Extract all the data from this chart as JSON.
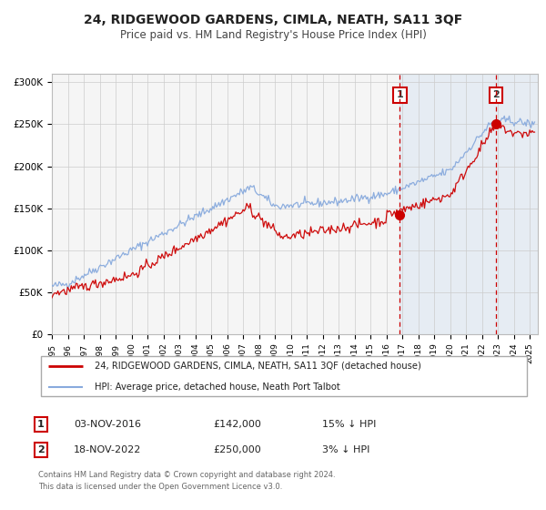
{
  "title": "24, RIDGEWOOD GARDENS, CIMLA, NEATH, SA11 3QF",
  "subtitle": "Price paid vs. HM Land Registry's House Price Index (HPI)",
  "ylim": [
    0,
    310000
  ],
  "xlim_start": 1995.0,
  "xlim_end": 2025.5,
  "yticks": [
    0,
    50000,
    100000,
    150000,
    200000,
    250000,
    300000
  ],
  "ytick_labels": [
    "£0",
    "£50K",
    "£100K",
    "£150K",
    "£200K",
    "£250K",
    "£300K"
  ],
  "xtick_years": [
    1995,
    1996,
    1997,
    1998,
    1999,
    2000,
    2001,
    2002,
    2003,
    2004,
    2005,
    2006,
    2007,
    2008,
    2009,
    2010,
    2011,
    2012,
    2013,
    2014,
    2015,
    2016,
    2017,
    2018,
    2019,
    2020,
    2021,
    2022,
    2023,
    2024,
    2025
  ],
  "sale1_x": 2016.84,
  "sale1_y": 142000,
  "sale1_label": "1",
  "sale1_date": "03-NOV-2016",
  "sale1_price": "£142,000",
  "sale1_hpi": "15% ↓ HPI",
  "sale2_x": 2022.88,
  "sale2_y": 250000,
  "sale2_label": "2",
  "sale2_date": "18-NOV-2022",
  "sale2_price": "£250,000",
  "sale2_hpi": "3% ↓ HPI",
  "line1_color": "#cc0000",
  "line2_color": "#88aadd",
  "sale_dot_color": "#cc0000",
  "sale_vline_color": "#cc0000",
  "bg_shade_color": "#ccddf0",
  "legend1_label": "24, RIDGEWOOD GARDENS, CIMLA, NEATH, SA11 3QF (detached house)",
  "legend2_label": "HPI: Average price, detached house, Neath Port Talbot",
  "footer1": "Contains HM Land Registry data © Crown copyright and database right 2024.",
  "footer2": "This data is licensed under the Open Government Licence v3.0.",
  "title_fontsize": 10,
  "subtitle_fontsize": 8.5,
  "grid_color": "#cccccc",
  "background_color": "#ffffff",
  "plot_bg_color": "#f5f5f5"
}
